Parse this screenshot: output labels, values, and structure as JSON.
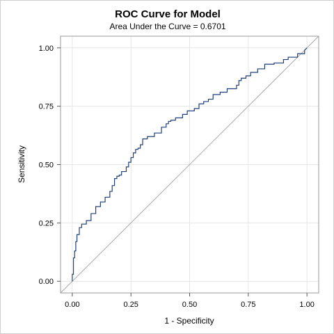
{
  "chart_data": {
    "type": "line",
    "title": "ROC Curve for Model",
    "subtitle": "Area Under the Curve = 0.6701",
    "xlabel": "1 - Specificity",
    "ylabel": "Sensitivity",
    "xlim": [
      -0.05,
      1.05
    ],
    "ylim": [
      -0.05,
      1.05
    ],
    "xticks": [
      "0.00",
      "0.25",
      "0.50",
      "0.75",
      "1.00"
    ],
    "yticks": [
      "0.00",
      "0.25",
      "0.50",
      "0.75",
      "1.00"
    ],
    "grid": true,
    "series": [
      {
        "name": "",
        "color": "#1f3f7a",
        "x": [
          0.0,
          0.0,
          0.005,
          0.005,
          0.01,
          0.01,
          0.015,
          0.015,
          0.02,
          0.02,
          0.03,
          0.03,
          0.04,
          0.04,
          0.06,
          0.06,
          0.08,
          0.08,
          0.1,
          0.1,
          0.12,
          0.12,
          0.14,
          0.14,
          0.16,
          0.16,
          0.17,
          0.17,
          0.18,
          0.18,
          0.19,
          0.19,
          0.2,
          0.2,
          0.21,
          0.21,
          0.23,
          0.23,
          0.24,
          0.24,
          0.25,
          0.25,
          0.26,
          0.26,
          0.27,
          0.27,
          0.28,
          0.28,
          0.29,
          0.29,
          0.3,
          0.3,
          0.32,
          0.32,
          0.35,
          0.35,
          0.38,
          0.38,
          0.4,
          0.4,
          0.41,
          0.41,
          0.42,
          0.42,
          0.44,
          0.44,
          0.47,
          0.47,
          0.49,
          0.49,
          0.52,
          0.52,
          0.54,
          0.54,
          0.56,
          0.56,
          0.58,
          0.58,
          0.6,
          0.6,
          0.63,
          0.63,
          0.66,
          0.66,
          0.7,
          0.7,
          0.71,
          0.71,
          0.72,
          0.72,
          0.74,
          0.74,
          0.76,
          0.76,
          0.79,
          0.79,
          0.82,
          0.82,
          0.86,
          0.86,
          0.9,
          0.9,
          0.92,
          0.92,
          0.96,
          0.96,
          0.99,
          0.99,
          1.0
        ],
        "y": [
          0.0,
          0.03,
          0.03,
          0.1,
          0.1,
          0.13,
          0.13,
          0.17,
          0.17,
          0.2,
          0.2,
          0.23,
          0.23,
          0.245,
          0.245,
          0.26,
          0.26,
          0.29,
          0.29,
          0.32,
          0.32,
          0.34,
          0.34,
          0.36,
          0.36,
          0.385,
          0.385,
          0.41,
          0.41,
          0.44,
          0.44,
          0.45,
          0.45,
          0.455,
          0.455,
          0.47,
          0.47,
          0.49,
          0.49,
          0.51,
          0.51,
          0.53,
          0.53,
          0.55,
          0.55,
          0.565,
          0.565,
          0.57,
          0.57,
          0.585,
          0.585,
          0.61,
          0.61,
          0.62,
          0.62,
          0.635,
          0.635,
          0.66,
          0.66,
          0.675,
          0.675,
          0.685,
          0.685,
          0.69,
          0.69,
          0.7,
          0.7,
          0.715,
          0.715,
          0.73,
          0.73,
          0.74,
          0.74,
          0.76,
          0.76,
          0.77,
          0.77,
          0.78,
          0.78,
          0.8,
          0.8,
          0.81,
          0.81,
          0.825,
          0.825,
          0.84,
          0.84,
          0.86,
          0.86,
          0.87,
          0.87,
          0.88,
          0.88,
          0.895,
          0.895,
          0.91,
          0.91,
          0.93,
          0.93,
          0.935,
          0.935,
          0.95,
          0.95,
          0.96,
          0.96,
          0.975,
          0.975,
          0.99,
          1.0
        ]
      }
    ],
    "reference_line": {
      "x": [
        -0.05,
        1.05
      ],
      "y": [
        -0.05,
        1.05
      ],
      "color": "#a8a8a8"
    }
  }
}
